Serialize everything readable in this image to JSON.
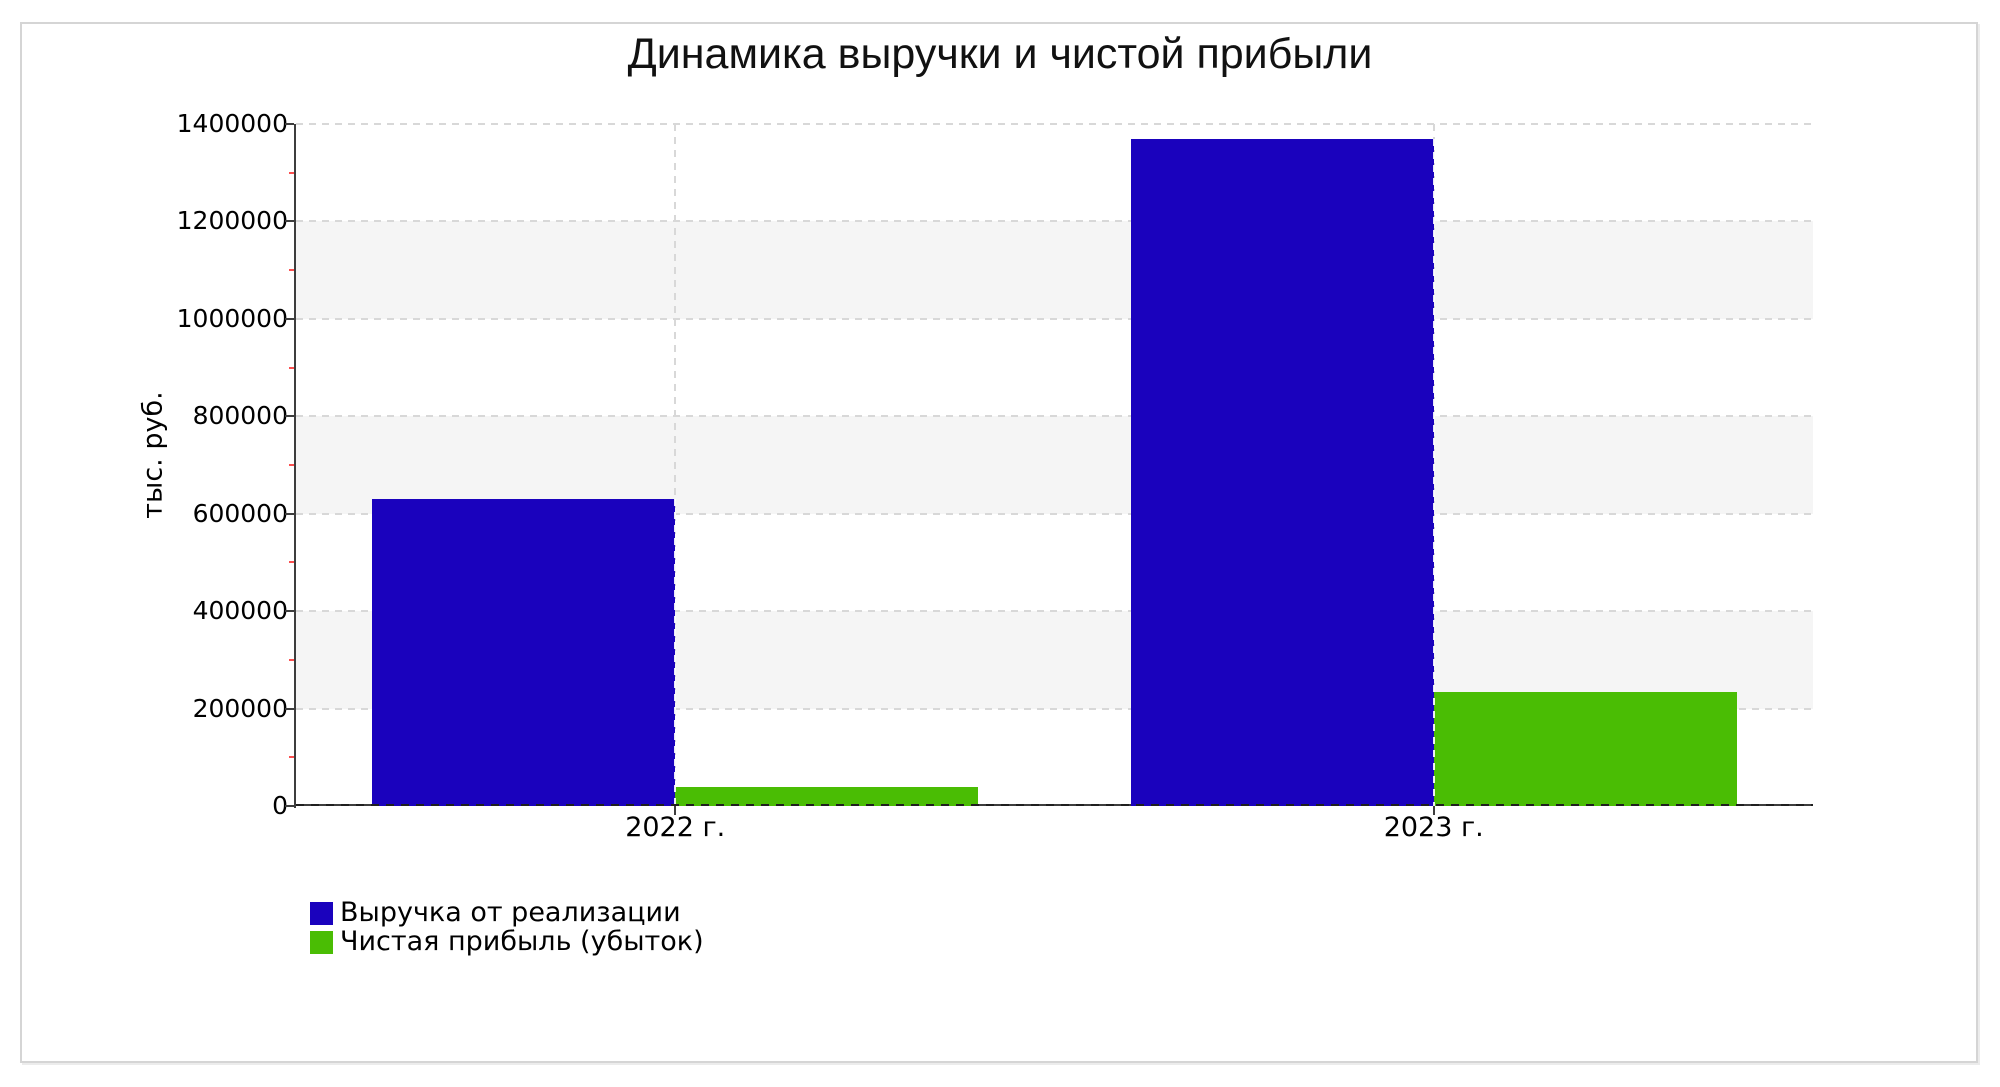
{
  "window": {
    "background": "#ffffff",
    "frame_border_color": "#d5d5d5"
  },
  "chart_data": {
    "type": "bar",
    "title": "Динамика выручки и чистой прибыли",
    "ylabel": "тыс. руб.",
    "xlabel": "",
    "categories": [
      "2022 г.",
      "2023 г."
    ],
    "series": [
      {
        "name": "Выручка от реализации",
        "color": "#1a02bd",
        "values": [
          630000,
          1370000
        ]
      },
      {
        "name": "Чистая прибыль (убыток)",
        "color": "#4abd04",
        "values": [
          39000,
          235000
        ]
      }
    ],
    "ylim": [
      0,
      1400000
    ],
    "yticks": [
      0,
      200000,
      400000,
      600000,
      800000,
      1000000,
      1200000,
      1400000
    ],
    "ytick_labels": [
      "0",
      "200000",
      "400000",
      "600000",
      "800000",
      "1000000",
      "1200000",
      "1400000"
    ],
    "minor_ytick_interval": 100000,
    "legend_position": "bottom-left",
    "grid": {
      "horizontal_dashed": true,
      "vertical_dashed_at_categories": true,
      "alternating_bands": true,
      "band_color": "#f5f5f5",
      "line_color": "#d8d8d8"
    },
    "axis_color": "#3d3d3d",
    "minor_tick_color": "#fb4f4f"
  }
}
